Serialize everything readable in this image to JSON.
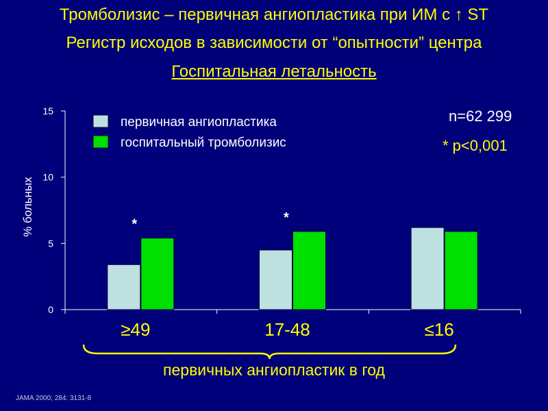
{
  "slide": {
    "title_line1": "Тромболизис – первичная ангиопластика при ИМ с ↑ ST",
    "title_line2": "Регистр исходов в зависимости от “опытности” центра",
    "n_label": "n=62 299",
    "significance_note": "* p<0,001",
    "brace_label": "первичных ангиопластик в год",
    "source": "JAMA 2000; 284: 3131-8"
  },
  "colors": {
    "background": "#00007a",
    "title": "#ffff00",
    "axis": "#ffffff",
    "primary_pci": "#bfe0e0",
    "thrombolysis": "#00e000",
    "brace": "#ffff00"
  },
  "chart_data": {
    "type": "bar",
    "title": "Госпитальная летальность",
    "ylabel": "% больных",
    "xlabel": "первичных ангиопластик в год",
    "categories": [
      "≥49",
      "17-48",
      "≤16"
    ],
    "series": [
      {
        "name": "первичная ангиопластика",
        "values": [
          3.4,
          4.5,
          6.2
        ]
      },
      {
        "name": "госпитальный тромболизис",
        "values": [
          5.4,
          5.9,
          5.9
        ]
      }
    ],
    "significance_markers": [
      "*",
      "*",
      ""
    ],
    "ylim": [
      0,
      15
    ],
    "yticks": [
      0,
      5,
      10,
      15
    ],
    "grid": false,
    "legend_position": "top-left"
  }
}
